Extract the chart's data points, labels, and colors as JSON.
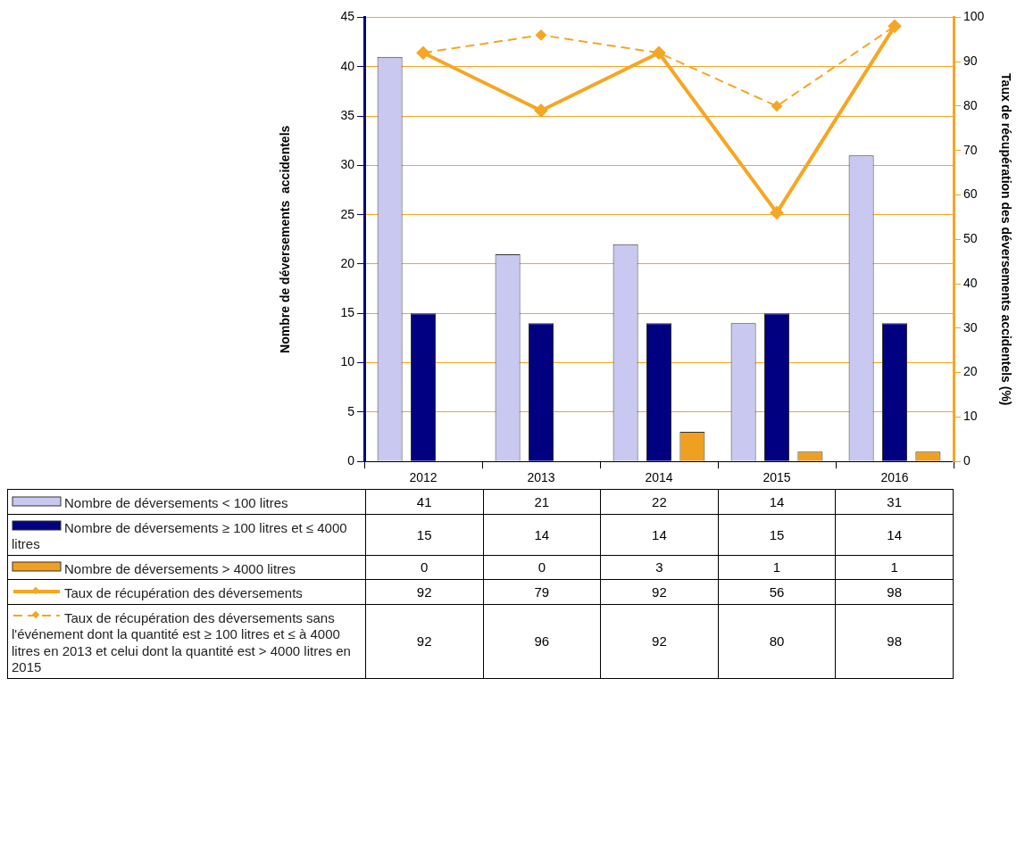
{
  "chart_data": {
    "type": "bar",
    "categories": [
      "2012",
      "2013",
      "2014",
      "2015",
      "2016"
    ],
    "ylabel": "Nombre de déversements  accidentels",
    "y2label": "Taux de récupération des déversements accidentels (%)",
    "ylim": [
      0,
      45
    ],
    "yticks": [
      0,
      5,
      10,
      15,
      20,
      25,
      30,
      35,
      40,
      45
    ],
    "y2lim": [
      0,
      100
    ],
    "y2ticks": [
      0,
      10,
      20,
      30,
      40,
      50,
      60,
      70,
      80,
      90,
      100
    ],
    "grid": "y",
    "legend": "bottom",
    "data_labels": true,
    "marker": "diamond",
    "series": [
      {
        "name": "Nombre de déversements < 100 litres",
        "color": "#c8c8f0",
        "values": [
          41,
          21,
          22,
          14,
          31
        ]
      },
      {
        "name": "Nombre de déversements ≥ 100 litres et ≤ 4000 litres",
        "color": "#000080",
        "values": [
          15,
          14,
          14,
          15,
          14
        ]
      },
      {
        "name": "Nombre de déversements > 4000 litres",
        "color": "#f0a020",
        "values": [
          0,
          0,
          3,
          1,
          1
        ]
      },
      {
        "name": "Taux de récupération des déversements",
        "type": "line",
        "axis": "y2",
        "line_style": "solid",
        "color": "#f5a623",
        "values": [
          92,
          79,
          92,
          56,
          98
        ]
      },
      {
        "name": "Taux de récupération des déversements sans l'événement dont la quantité est ≥ 100 litres et ≤ à 4000 litres en 2013 et celui dont la quantité est > 4000 litres en 2015",
        "type": "line",
        "axis": "y2",
        "line_style": "dashed",
        "color": "#f5a623",
        "values": [
          92,
          96,
          92,
          80,
          98
        ]
      }
    ]
  }
}
